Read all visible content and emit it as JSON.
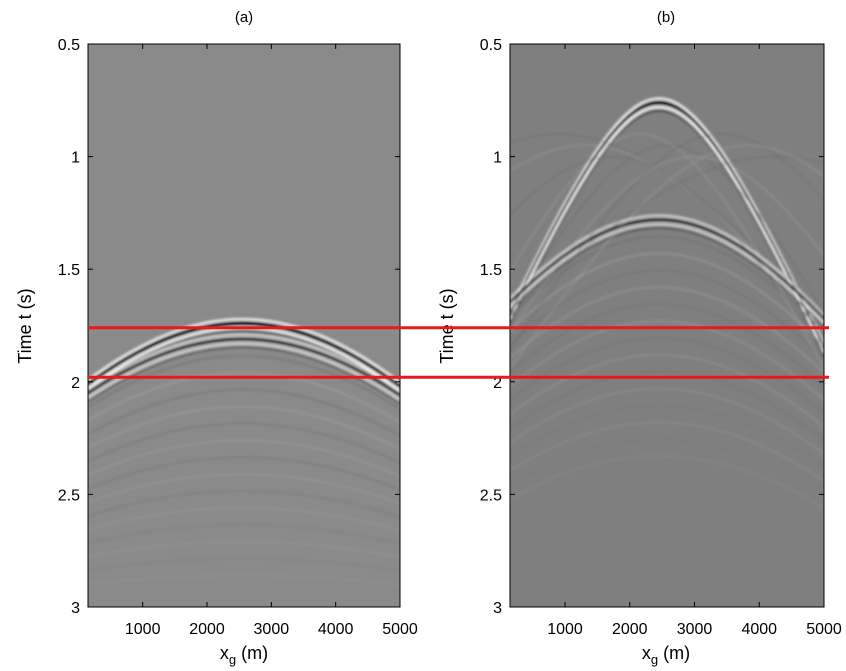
{
  "chart_data": [
    {
      "type": "heatmap",
      "panel_label": "(a)",
      "xlabel": "x",
      "xlabel_sub": "g",
      "xlabel_unit": "(m)",
      "ylabel": "Time t (s)",
      "xlim": [
        150,
        5000
      ],
      "ylim": [
        0.5,
        3
      ],
      "y_reversed": true,
      "xticks": [
        "1000",
        "2000",
        "3000",
        "4000",
        "5000"
      ],
      "yticks": [
        "0.5",
        "1",
        "1.5",
        "2",
        "2.5",
        "3"
      ],
      "colormap": "grayscale",
      "background_color": "#8a8a8a",
      "events": [
        {
          "apex_x": 2550,
          "apex_t": 1.74,
          "edge_t": 2.02
        },
        {
          "apex_x": 2550,
          "apex_t": 1.81,
          "edge_t": 2.06
        }
      ]
    },
    {
      "type": "heatmap",
      "panel_label": "(b)",
      "xlabel": "x",
      "xlabel_sub": "g",
      "xlabel_unit": "(m)",
      "ylabel": "Time t (s)",
      "xlim": [
        150,
        5000
      ],
      "ylim": [
        0.5,
        3
      ],
      "y_reversed": true,
      "xticks": [
        "1000",
        "2000",
        "3000",
        "4000",
        "5000"
      ],
      "yticks": [
        "0.5",
        "1",
        "1.5",
        "2",
        "2.5",
        "3"
      ],
      "colormap": "grayscale",
      "background_color": "#7f7f7f",
      "events": [
        {
          "apex_x": 2450,
          "apex_t": 0.76,
          "edge_t": 1.85
        },
        {
          "apex_x": 2450,
          "apex_t": 1.28,
          "edge_t": 1.72
        }
      ]
    }
  ],
  "reference_lines": {
    "color": "#e8191b",
    "times": [
      1.76,
      1.98
    ]
  }
}
